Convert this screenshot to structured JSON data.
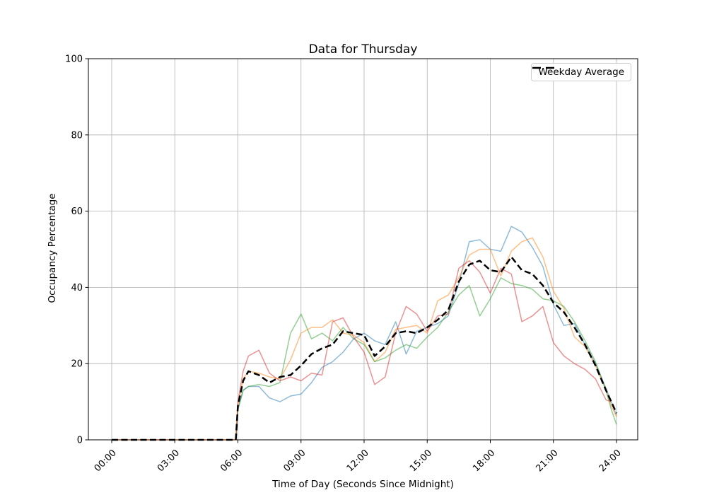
{
  "chart_data": {
    "type": "line",
    "title": "Data for Thursday",
    "xlabel": "Time of Day (Seconds Since Midnight)",
    "ylabel": "Occupancy Percentage",
    "ylim": [
      0,
      100
    ],
    "yticks": [
      0,
      20,
      40,
      60,
      80,
      100
    ],
    "xtick_hours": [
      0,
      3,
      6,
      9,
      12,
      15,
      18,
      21,
      24
    ],
    "xtick_labels": [
      "00:00",
      "03:00",
      "06:00",
      "09:00",
      "12:00",
      "15:00",
      "18:00",
      "21:00",
      "24:00"
    ],
    "grid": true,
    "grid_color": "#b0b0b0",
    "legend": {
      "location": "upper right",
      "entries": [
        {
          "label": "Weekday Average",
          "color": "#000000",
          "linestyle": "dashed"
        }
      ]
    },
    "x_hours": [
      0,
      1,
      2,
      3,
      4,
      5,
      5.9,
      6,
      6.25,
      6.5,
      7,
      7.5,
      8,
      8.5,
      9,
      9.5,
      10,
      10.5,
      11,
      11.5,
      12,
      12.5,
      13,
      13.5,
      14,
      14.5,
      15,
      15.5,
      16,
      16.5,
      17,
      17.5,
      18,
      18.5,
      19,
      19.5,
      20,
      20.5,
      21,
      21.5,
      22,
      22.5,
      23,
      23.5,
      23.75,
      24
    ],
    "series": [
      {
        "name": "weekday-series-blue",
        "color": "#1f77b4",
        "alpha": 0.5,
        "linestyle": "solid",
        "linewidth": 1.5,
        "values": [
          0,
          0,
          0,
          0,
          0,
          0,
          0,
          8,
          13,
          14,
          14,
          11,
          10,
          11.5,
          12,
          15,
          19,
          20.5,
          23,
          26.5,
          28,
          26,
          25,
          31,
          22.5,
          28.5,
          29.5,
          30.5,
          32.5,
          41,
          52,
          52.5,
          50,
          49.5,
          56,
          54.5,
          50.5,
          45.5,
          35.5,
          30,
          30.5,
          25,
          20,
          13.5,
          10,
          6.5
        ]
      },
      {
        "name": "weekday-series-orange",
        "color": "#ff7f0e",
        "alpha": 0.5,
        "linestyle": "solid",
        "linewidth": 1.5,
        "values": [
          0,
          0,
          0,
          0,
          0,
          0,
          0,
          9,
          16,
          18,
          17.5,
          16.5,
          16,
          21,
          28,
          29.5,
          29.5,
          31.5,
          28,
          27.5,
          25.5,
          20.5,
          23,
          29,
          29.5,
          30,
          28,
          36.5,
          38,
          42.5,
          48.5,
          50,
          50,
          43,
          49.5,
          52,
          53,
          48,
          39,
          34.5,
          27,
          24.5,
          19.5,
          13,
          9,
          6
        ]
      },
      {
        "name": "weekday-series-green",
        "color": "#2ca02c",
        "alpha": 0.5,
        "linestyle": "solid",
        "linewidth": 1.5,
        "values": [
          0,
          0,
          0,
          0,
          0,
          0,
          0,
          8,
          13,
          14,
          14.5,
          14,
          15,
          28,
          33,
          26.5,
          28,
          26,
          29.5,
          26.5,
          25,
          20.5,
          21.5,
          23.5,
          25,
          24,
          27,
          29.5,
          33.5,
          38,
          40.5,
          32.5,
          37,
          42.5,
          41,
          40.5,
          39.5,
          37,
          36.5,
          35,
          31,
          26,
          20.5,
          13,
          8,
          4
        ]
      },
      {
        "name": "weekday-series-red",
        "color": "#d62728",
        "alpha": 0.5,
        "linestyle": "solid",
        "linewidth": 1.5,
        "values": [
          0,
          0,
          0,
          0,
          0,
          0,
          0,
          10,
          18,
          22,
          23.5,
          17.5,
          15.5,
          16.5,
          15.5,
          17.5,
          17,
          31,
          32,
          27,
          23,
          14.5,
          16.5,
          28,
          35,
          33,
          28.5,
          32.5,
          33,
          45,
          47,
          44,
          38.5,
          45,
          43.5,
          31,
          32.5,
          35,
          25.5,
          22,
          20,
          18.5,
          16,
          10.5,
          10,
          null
        ]
      },
      {
        "name": "Weekday Average",
        "color": "#000000",
        "alpha": 1,
        "linestyle": "dashed",
        "linewidth": 2.5,
        "values": [
          0,
          0,
          0,
          0,
          0,
          0,
          0,
          9,
          15.5,
          18,
          17,
          15,
          16.5,
          17,
          19.5,
          22.5,
          24,
          25,
          28.5,
          28,
          27.5,
          22,
          24.5,
          28,
          28.5,
          28,
          29.5,
          31.5,
          34,
          41.5,
          46,
          47,
          44.5,
          44,
          48,
          44.5,
          43.5,
          40.5,
          36,
          33.5,
          29.5,
          25,
          19.5,
          13,
          10,
          7
        ]
      }
    ]
  }
}
